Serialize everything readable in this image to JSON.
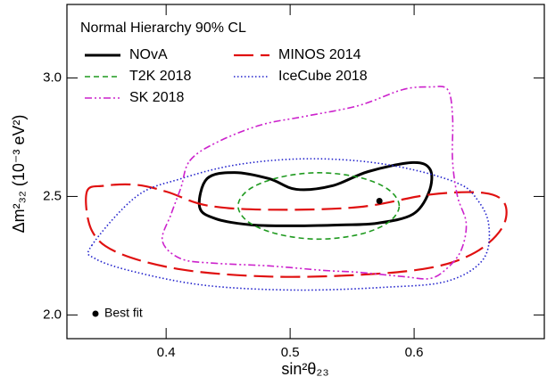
{
  "chart_data": {
    "type": "contour",
    "legend_title": "Normal Hierarchy 90% CL",
    "xlabel": "sin²θ₂₃",
    "ylabel": "Δm²₃₂ (10⁻³ eV²)",
    "xlim": [
      0.32,
      0.705
    ],
    "ylim": [
      1.9,
      3.31
    ],
    "xticks": [
      0.4,
      0.5,
      0.6
    ],
    "yticks": [
      {
        "value": 2,
        "label": "2.0"
      },
      {
        "value": 2.5,
        "label": "2.5"
      },
      {
        "value": 3,
        "label": "3.0"
      }
    ],
    "series": [
      {
        "name": "NOvA",
        "color": "#000000",
        "linestyle": "solid",
        "x": [
          0.427,
          0.433,
          0.455,
          0.483,
          0.505,
          0.534,
          0.563,
          0.599,
          0.613,
          0.612,
          0.599,
          0.57,
          0.541,
          0.505,
          0.469,
          0.44
        ],
        "y": [
          2.455,
          2.575,
          2.601,
          2.575,
          2.53,
          2.545,
          2.605,
          2.643,
          2.613,
          2.519,
          2.425,
          2.387,
          2.38,
          2.376,
          2.38,
          2.406
        ]
      },
      {
        "name": "MINOS 2014",
        "color": "#e01010",
        "linestyle": "long-dash",
        "x": [
          0.336,
          0.35,
          0.376,
          0.401,
          0.433,
          0.483,
          0.555,
          0.613,
          0.656,
          0.673,
          0.671,
          0.649,
          0.613,
          0.555,
          0.483,
          0.412,
          0.361,
          0.34
        ],
        "y": [
          2.519,
          2.545,
          2.549,
          2.519,
          2.462,
          2.444,
          2.455,
          2.508,
          2.515,
          2.47,
          2.368,
          2.263,
          2.199,
          2.169,
          2.162,
          2.192,
          2.263,
          2.357
        ]
      },
      {
        "name": "T2K 2018",
        "color": "#1f9a1f",
        "linestyle": "dash",
        "x": [
          0.588,
          0.579,
          0.556,
          0.523,
          0.491,
          0.467,
          0.458,
          0.467,
          0.491,
          0.523,
          0.556,
          0.579
        ],
        "y": [
          2.46,
          2.53,
          2.58,
          2.6,
          2.58,
          2.53,
          2.46,
          2.39,
          2.34,
          2.32,
          2.34,
          2.39
        ]
      },
      {
        "name": "IceCube 2018",
        "color": "#2222cc",
        "linestyle": "dot",
        "x": [
          0.34,
          0.376,
          0.412,
          0.455,
          0.505,
          0.555,
          0.599,
          0.635,
          0.649,
          0.66,
          0.656,
          0.627,
          0.577,
          0.505,
          0.433,
          0.376,
          0.343
        ],
        "y": [
          2.293,
          2.5,
          2.575,
          2.632,
          2.658,
          2.65,
          2.613,
          2.556,
          2.5,
          2.387,
          2.237,
          2.143,
          2.117,
          2.105,
          2.124,
          2.18,
          2.237
        ]
      },
      {
        "name": "SK 2018",
        "color": "#cc22cc",
        "linestyle": "dash-dot",
        "x": [
          0.419,
          0.44,
          0.476,
          0.512,
          0.555,
          0.591,
          0.613,
          0.627,
          0.631,
          0.631,
          0.635,
          0.642,
          0.638,
          0.627,
          0.613,
          0.591,
          0.555,
          0.527,
          0.483,
          0.44,
          0.412,
          0.397,
          0.404,
          0.412
        ],
        "y": [
          2.65,
          2.726,
          2.801,
          2.838,
          2.883,
          2.951,
          2.962,
          2.951,
          2.838,
          2.65,
          2.5,
          2.387,
          2.274,
          2.199,
          2.154,
          2.162,
          2.18,
          2.188,
          2.207,
          2.218,
          2.237,
          2.312,
          2.425,
          2.538
        ]
      }
    ],
    "best_fit": {
      "label": "Best fit",
      "x": 0.572,
      "y": 2.481,
      "color": "#000000"
    }
  }
}
